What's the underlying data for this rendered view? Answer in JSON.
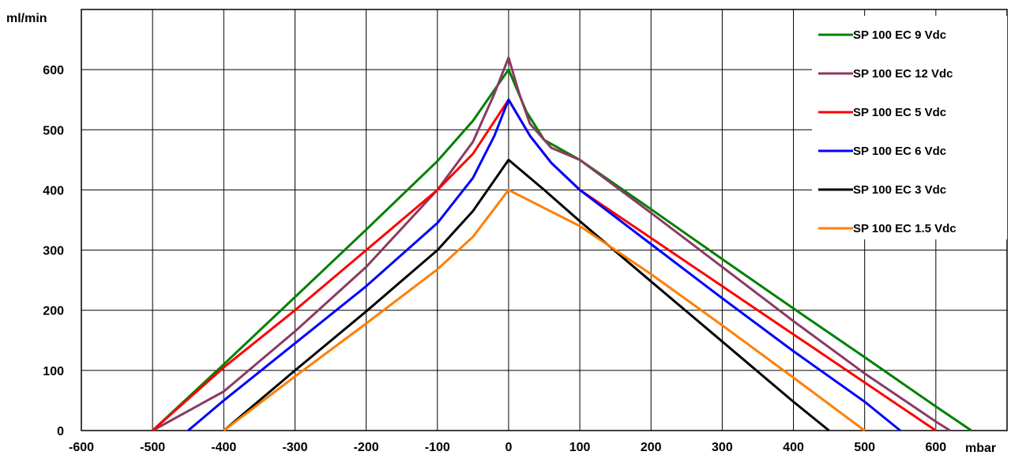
{
  "chart_data": {
    "type": "line",
    "title": "",
    "ylabel": "ml/min",
    "xlabel": "mbar",
    "xlim": [
      -600,
      700
    ],
    "ylim": [
      0,
      700
    ],
    "xticks": [
      -600,
      -500,
      -400,
      -300,
      -200,
      -100,
      0,
      100,
      200,
      300,
      400,
      500,
      600
    ],
    "yticks": [
      0,
      100,
      200,
      300,
      400,
      500,
      600
    ],
    "grid": true,
    "legend_position": "top-right",
    "series": [
      {
        "name": "SP 100 EC 9 Vdc",
        "color": "#008000",
        "points": [
          [
            -500,
            0
          ],
          [
            -400,
            110
          ],
          [
            -300,
            222
          ],
          [
            -200,
            334
          ],
          [
            -100,
            448
          ],
          [
            -50,
            515
          ],
          [
            0,
            600
          ],
          [
            25,
            530
          ],
          [
            50,
            483
          ],
          [
            100,
            450
          ],
          [
            200,
            368
          ],
          [
            300,
            285
          ],
          [
            400,
            203
          ],
          [
            500,
            122
          ],
          [
            600,
            40
          ],
          [
            650,
            0
          ]
        ]
      },
      {
        "name": "SP 100 EC 12 Vdc",
        "color": "#8B3A62",
        "points": [
          [
            -500,
            0
          ],
          [
            -400,
            65
          ],
          [
            -300,
            165
          ],
          [
            -200,
            272
          ],
          [
            -100,
            400
          ],
          [
            -50,
            480
          ],
          [
            -20,
            560
          ],
          [
            0,
            620
          ],
          [
            15,
            560
          ],
          [
            30,
            510
          ],
          [
            60,
            470
          ],
          [
            100,
            450
          ],
          [
            200,
            362
          ],
          [
            300,
            272
          ],
          [
            400,
            182
          ],
          [
            500,
            95
          ],
          [
            600,
            15
          ],
          [
            620,
            0
          ]
        ]
      },
      {
        "name": "SP 100 EC 5 Vdc",
        "color": "#FF0000",
        "points": [
          [
            -500,
            0
          ],
          [
            -400,
            105
          ],
          [
            -300,
            200
          ],
          [
            -200,
            300
          ],
          [
            -100,
            400
          ],
          [
            -50,
            460
          ],
          [
            0,
            550
          ],
          [
            30,
            490
          ],
          [
            60,
            445
          ],
          [
            100,
            400
          ],
          [
            200,
            320
          ],
          [
            300,
            240
          ],
          [
            400,
            160
          ],
          [
            500,
            80
          ],
          [
            600,
            0
          ]
        ]
      },
      {
        "name": "SP 100 EC 6 Vdc",
        "color": "#0000FF",
        "points": [
          [
            -450,
            0
          ],
          [
            -400,
            50
          ],
          [
            -300,
            145
          ],
          [
            -200,
            240
          ],
          [
            -100,
            345
          ],
          [
            -50,
            420
          ],
          [
            -20,
            490
          ],
          [
            0,
            550
          ],
          [
            30,
            490
          ],
          [
            60,
            445
          ],
          [
            100,
            400
          ],
          [
            200,
            310
          ],
          [
            300,
            220
          ],
          [
            400,
            132
          ],
          [
            500,
            48
          ],
          [
            550,
            0
          ]
        ]
      },
      {
        "name": "SP 100 EC 3 Vdc",
        "color": "#000000",
        "points": [
          [
            -400,
            0
          ],
          [
            -300,
            100
          ],
          [
            -200,
            198
          ],
          [
            -100,
            300
          ],
          [
            -50,
            365
          ],
          [
            0,
            450
          ],
          [
            50,
            400
          ],
          [
            100,
            348
          ],
          [
            200,
            248
          ],
          [
            300,
            148
          ],
          [
            400,
            48
          ],
          [
            450,
            0
          ]
        ]
      },
      {
        "name": "SP 100 EC 1.5 Vdc",
        "color": "#FF7F00",
        "points": [
          [
            -400,
            0
          ],
          [
            -300,
            90
          ],
          [
            -200,
            178
          ],
          [
            -100,
            268
          ],
          [
            -50,
            322
          ],
          [
            0,
            400
          ],
          [
            50,
            370
          ],
          [
            100,
            340
          ],
          [
            200,
            260
          ],
          [
            300,
            175
          ],
          [
            400,
            88
          ],
          [
            500,
            0
          ]
        ]
      }
    ]
  }
}
